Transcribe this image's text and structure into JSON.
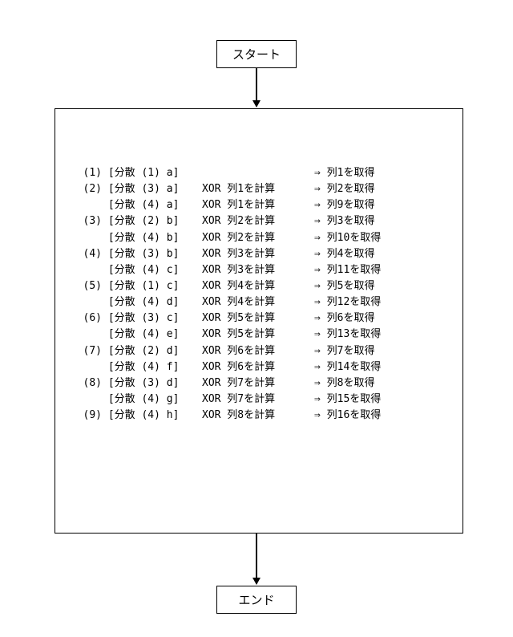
{
  "flowchart": {
    "start_label": "スタート",
    "end_label": "エンド",
    "arrow_color": "#000000",
    "border_color": "#000000",
    "background_color": "#ffffff",
    "font_family": "MS Gothic",
    "font_size_box": 15,
    "font_size_table": 13
  },
  "table": {
    "columns": [
      "index",
      "dispersion",
      "xor_calc",
      "result"
    ],
    "rows": [
      {
        "idx": "(1)",
        "disp": "[分散 (1) a]",
        "xor": "",
        "res": "⇒ 列1を取得"
      },
      {
        "idx": "(2)",
        "disp": "[分散 (3) a]",
        "xor": "XOR 列1を計算",
        "res": "⇒ 列2を取得"
      },
      {
        "idx": "",
        "disp": "[分散 (4) a]",
        "xor": "XOR 列1を計算",
        "res": "⇒ 列9を取得"
      },
      {
        "idx": "(3)",
        "disp": "[分散 (2) b]",
        "xor": "XOR 列2を計算",
        "res": "⇒ 列3を取得"
      },
      {
        "idx": "",
        "disp": "[分散 (4) b]",
        "xor": "XOR 列2を計算",
        "res": "⇒ 列10を取得"
      },
      {
        "idx": "(4)",
        "disp": "[分散 (3) b]",
        "xor": "XOR 列3を計算",
        "res": "⇒ 列4を取得"
      },
      {
        "idx": "",
        "disp": "[分散 (4) c]",
        "xor": "XOR 列3を計算",
        "res": "⇒ 列11を取得"
      },
      {
        "idx": "(5)",
        "disp": "[分散 (1) c]",
        "xor": "XOR 列4を計算",
        "res": "⇒ 列5を取得"
      },
      {
        "idx": "",
        "disp": "[分散 (4) d]",
        "xor": "XOR 列4を計算",
        "res": "⇒ 列12を取得"
      },
      {
        "idx": "(6)",
        "disp": "[分散 (3) c]",
        "xor": "XOR 列5を計算",
        "res": "⇒ 列6を取得"
      },
      {
        "idx": "",
        "disp": "[分散 (4) e]",
        "xor": "XOR 列5を計算",
        "res": "⇒ 列13を取得"
      },
      {
        "idx": "(7)",
        "disp": "[分散 (2) d]",
        "xor": "XOR 列6を計算",
        "res": "⇒ 列7を取得"
      },
      {
        "idx": "",
        "disp": "[分散 (4) f]",
        "xor": "XOR 列6を計算",
        "res": "⇒ 列14を取得"
      },
      {
        "idx": "(8)",
        "disp": "[分散 (3) d]",
        "xor": "XOR 列7を計算",
        "res": "⇒ 列8を取得"
      },
      {
        "idx": "",
        "disp": "[分散 (4) g]",
        "xor": "XOR 列7を計算",
        "res": "⇒ 列15を取得"
      },
      {
        "idx": "(9)",
        "disp": "[分散 (4) h]",
        "xor": "XOR 列8を計算",
        "res": "⇒ 列16を取得"
      }
    ]
  }
}
